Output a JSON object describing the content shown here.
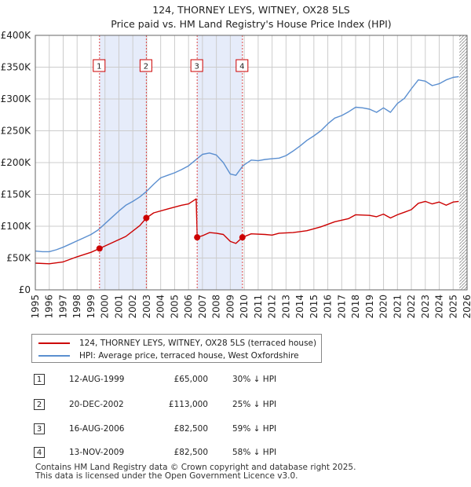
{
  "chart_data": {
    "type": "line",
    "title": "124, THORNEY LEYS, WITNEY, OX28 5LS",
    "subtitle": "Price paid vs. HM Land Registry's House Price Index (HPI)",
    "xlim": [
      1995,
      2026
    ],
    "ylim": [
      0,
      400000
    ],
    "x_ticks": [
      "1995",
      "1996",
      "1997",
      "1998",
      "1999",
      "2000",
      "2001",
      "2002",
      "2003",
      "2004",
      "2005",
      "2006",
      "2007",
      "2008",
      "2009",
      "2010",
      "2011",
      "2012",
      "2013",
      "2014",
      "2015",
      "2016",
      "2017",
      "2018",
      "2019",
      "2020",
      "2021",
      "2022",
      "2023",
      "2024",
      "2025",
      "2026"
    ],
    "y_ticks": [
      {
        "label": "£0",
        "value": 0
      },
      {
        "label": "£50K",
        "value": 50000
      },
      {
        "label": "£100K",
        "value": 100000
      },
      {
        "label": "£150K",
        "value": 150000
      },
      {
        "label": "£200K",
        "value": 200000
      },
      {
        "label": "£250K",
        "value": 250000
      },
      {
        "label": "£300K",
        "value": 300000
      },
      {
        "label": "£350K",
        "value": 350000
      },
      {
        "label": "£400K",
        "value": 400000
      }
    ],
    "grid": true,
    "shaded_periods": [
      [
        1999.61,
        2002.97
      ],
      [
        2006.62,
        2009.87
      ]
    ],
    "future_hatch_start": 2025.45,
    "series": [
      {
        "name": "124, THORNEY LEYS, WITNEY, OX28 5LS (terraced house)",
        "color": "#cc0000",
        "points": [
          [
            1995.0,
            42000
          ],
          [
            1996.0,
            41000
          ],
          [
            1997.0,
            44000
          ],
          [
            1998.0,
            52000
          ],
          [
            1999.0,
            59000
          ],
          [
            1999.61,
            65000
          ],
          [
            2000.5,
            74000
          ],
          [
            2001.5,
            84000
          ],
          [
            2002.5,
            101000
          ],
          [
            2002.97,
            113000
          ],
          [
            2003.5,
            121000
          ],
          [
            2004.5,
            127000
          ],
          [
            2005.5,
            133000
          ],
          [
            2006.0,
            135000
          ],
          [
            2006.55,
            143000
          ],
          [
            2006.62,
            82500
          ],
          [
            2007.0,
            85000
          ],
          [
            2007.5,
            90000
          ],
          [
            2008.0,
            89000
          ],
          [
            2008.5,
            87000
          ],
          [
            2009.0,
            76000
          ],
          [
            2009.4,
            73000
          ],
          [
            2009.87,
            82500
          ],
          [
            2010.5,
            88000
          ],
          [
            2011.5,
            87000
          ],
          [
            2012.0,
            86000
          ],
          [
            2012.5,
            89000
          ],
          [
            2013.5,
            90000
          ],
          [
            2014.5,
            93000
          ],
          [
            2015.5,
            99000
          ],
          [
            2016.5,
            107000
          ],
          [
            2017.5,
            112000
          ],
          [
            2018.0,
            118000
          ],
          [
            2019.0,
            117000
          ],
          [
            2019.5,
            115000
          ],
          [
            2020.0,
            119000
          ],
          [
            2020.5,
            113000
          ],
          [
            2021.0,
            118000
          ],
          [
            2021.5,
            122000
          ],
          [
            2022.0,
            126000
          ],
          [
            2022.5,
            136000
          ],
          [
            2023.0,
            139000
          ],
          [
            2023.5,
            135000
          ],
          [
            2024.0,
            138000
          ],
          [
            2024.5,
            133000
          ],
          [
            2025.0,
            138000
          ],
          [
            2025.4,
            139000
          ]
        ]
      },
      {
        "name": "HPI: Average price, terraced house, West Oxfordshire",
        "color": "#5b8fd0",
        "points": [
          [
            1995.0,
            61000
          ],
          [
            1995.5,
            60000
          ],
          [
            1996.0,
            60000
          ],
          [
            1996.5,
            63000
          ],
          [
            1997.0,
            67000
          ],
          [
            1997.5,
            72000
          ],
          [
            1998.0,
            77000
          ],
          [
            1998.5,
            82000
          ],
          [
            1999.0,
            87000
          ],
          [
            1999.5,
            94000
          ],
          [
            2000.0,
            104000
          ],
          [
            2000.5,
            114000
          ],
          [
            2001.0,
            124000
          ],
          [
            2001.5,
            133000
          ],
          [
            2002.0,
            139000
          ],
          [
            2002.5,
            146000
          ],
          [
            2003.0,
            155000
          ],
          [
            2003.5,
            166000
          ],
          [
            2004.0,
            176000
          ],
          [
            2004.5,
            180000
          ],
          [
            2005.0,
            184000
          ],
          [
            2005.5,
            189000
          ],
          [
            2006.0,
            195000
          ],
          [
            2006.5,
            204000
          ],
          [
            2007.0,
            213000
          ],
          [
            2007.5,
            215000
          ],
          [
            2008.0,
            212000
          ],
          [
            2008.5,
            200000
          ],
          [
            2009.0,
            182000
          ],
          [
            2009.4,
            180000
          ],
          [
            2009.9,
            195000
          ],
          [
            2010.5,
            204000
          ],
          [
            2011.0,
            203000
          ],
          [
            2011.5,
            205000
          ],
          [
            2012.0,
            206000
          ],
          [
            2012.5,
            207000
          ],
          [
            2013.0,
            211000
          ],
          [
            2013.5,
            218000
          ],
          [
            2014.0,
            226000
          ],
          [
            2014.5,
            235000
          ],
          [
            2015.0,
            242000
          ],
          [
            2015.5,
            250000
          ],
          [
            2016.0,
            261000
          ],
          [
            2016.5,
            270000
          ],
          [
            2017.0,
            274000
          ],
          [
            2017.5,
            280000
          ],
          [
            2018.0,
            287000
          ],
          [
            2018.5,
            286000
          ],
          [
            2019.0,
            284000
          ],
          [
            2019.5,
            279000
          ],
          [
            2020.0,
            286000
          ],
          [
            2020.5,
            279000
          ],
          [
            2021.0,
            293000
          ],
          [
            2021.5,
            301000
          ],
          [
            2022.0,
            316000
          ],
          [
            2022.5,
            330000
          ],
          [
            2023.0,
            328000
          ],
          [
            2023.5,
            321000
          ],
          [
            2024.0,
            324000
          ],
          [
            2024.5,
            330000
          ],
          [
            2025.0,
            334000
          ],
          [
            2025.4,
            335000
          ]
        ]
      }
    ],
    "events": [
      {
        "label": "1",
        "x": 1999.61,
        "price": 65000
      },
      {
        "label": "2",
        "x": 2002.97,
        "price": 113000
      },
      {
        "label": "3",
        "x": 2006.62,
        "price": 82500
      },
      {
        "label": "4",
        "x": 2009.87,
        "price": 82500
      }
    ]
  },
  "legend": {
    "property_label": "124, THORNEY LEYS, WITNEY, OX28 5LS (terraced house)",
    "property_color": "#cc0000",
    "hpi_label": "HPI: Average price, terraced house, West Oxfordshire",
    "hpi_color": "#5b8fd0"
  },
  "sales": [
    {
      "num": "1",
      "date": "12-AUG-1999",
      "price": "£65,000",
      "hpi": "30% ↓ HPI"
    },
    {
      "num": "2",
      "date": "20-DEC-2002",
      "price": "£113,000",
      "hpi": "25% ↓ HPI"
    },
    {
      "num": "3",
      "date": "16-AUG-2006",
      "price": "£82,500",
      "hpi": "59% ↓ HPI"
    },
    {
      "num": "4",
      "date": "13-NOV-2009",
      "price": "£82,500",
      "hpi": "58% ↓ HPI"
    }
  ],
  "footer": {
    "line1": "Contains HM Land Registry data © Crown copyright and database right 2025.",
    "line2": "This data is licensed under the Open Government Licence v3.0."
  },
  "colors": {
    "shade": "#e6ecfa",
    "grid": "#cccccc",
    "event_line": "#dd4444"
  }
}
